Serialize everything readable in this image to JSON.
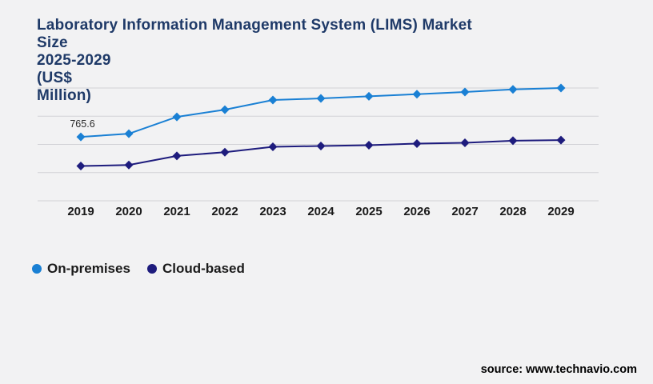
{
  "page": {
    "background": "#f2f2f3"
  },
  "header": {
    "title_lines": [
      "Laboratory Information Management System (LIMS) Market",
      "Size",
      "2025-2029",
      "(US$",
      "Million)"
    ],
    "title_color": "#1f3a68"
  },
  "legend": {
    "items": [
      {
        "label": "On-premises",
        "color": "#1a80d4"
      },
      {
        "label": "Cloud-based",
        "color": "#1e1c7d"
      }
    ]
  },
  "footer": {
    "source": "source: www.technavio.com"
  },
  "chart_data": {
    "type": "line",
    "title": "Laboratory Information Management System (LIMS) Market Size 2025-2029 (US$ Million)",
    "xlabel": "",
    "ylabel": "US$ Million",
    "categories": [
      "2019",
      "2020",
      "2021",
      "2022",
      "2023",
      "2024",
      "2025",
      "2026",
      "2027",
      "2028",
      "2029"
    ],
    "series": [
      {
        "name": "On-premises",
        "color": "#1a80d4",
        "marker": "diamond",
        "values": [
          765.6,
          804,
          1006,
          1092,
          1208,
          1227,
          1253,
          1278,
          1304,
          1335,
          1352
        ]
      },
      {
        "name": "Cloud-based",
        "color": "#1e1c7d",
        "marker": "diamond",
        "values": [
          417,
          429,
          538,
          583,
          647,
          657,
          667,
          686,
          695,
          720,
          727
        ]
      }
    ],
    "data_labels": [
      {
        "series": "On-premises",
        "category": "2019",
        "text": "765.6"
      }
    ],
    "ylim": [
      0,
      1352
    ],
    "gridline_values": [
      0,
      338,
      676,
      1014,
      1352
    ],
    "grid_color": "#d2d2d6",
    "grid_on": true,
    "legend_position": "bottom-left"
  }
}
